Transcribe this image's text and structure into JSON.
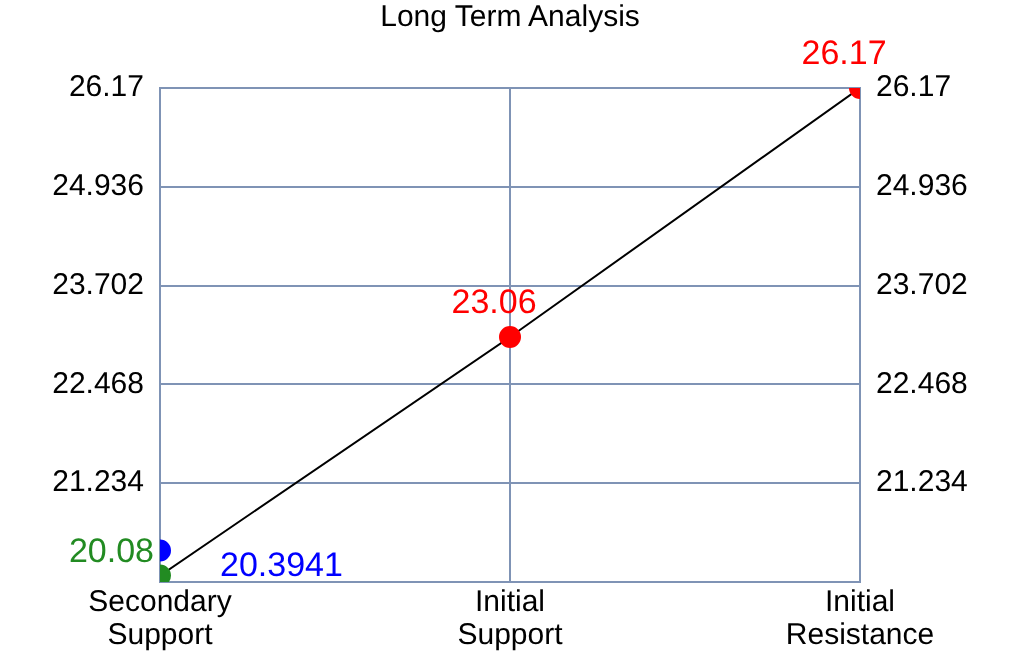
{
  "chart_data": {
    "type": "line",
    "title": "Long Term Analysis",
    "categories": [
      "Secondary Support",
      "Initial Support",
      "Initial Resistance"
    ],
    "ylim": [
      20,
      26.17
    ],
    "yticks": [
      21.234,
      22.468,
      23.702,
      24.936,
      26.17
    ],
    "y2lim": [
      20,
      26.17
    ],
    "y2ticks": [
      21.234,
      22.468,
      23.702,
      24.936,
      26.17
    ],
    "series": [
      {
        "color": "#000000",
        "values": [
          20.08,
          23.06,
          26.17
        ],
        "colors": [
          "#228b22",
          "#ff0000",
          "#ff0000"
        ]
      },
      {
        "type": "scatter",
        "color": "#0000ff",
        "x": [
          "Secondary Support"
        ],
        "values": [
          20.3941
        ]
      }
    ],
    "marker": "circle",
    "grid": true,
    "data_labels": true
  }
}
